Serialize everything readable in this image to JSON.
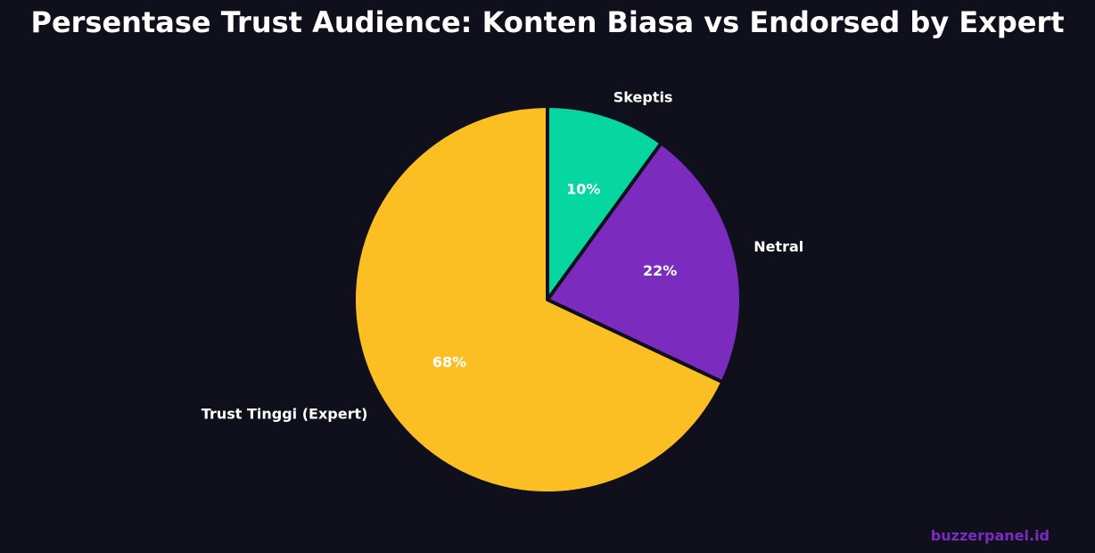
{
  "chart_data": {
    "type": "pie",
    "title": "Persentase Trust Audience: Konten Biasa vs Endorsed by Expert",
    "start_angle_deg": 90,
    "direction": "clockwise",
    "slices": [
      {
        "label": "Skeptis",
        "value": 10,
        "pct_label": "10%",
        "color": "#06d6a0"
      },
      {
        "label": "Netral",
        "value": 22,
        "pct_label": "22%",
        "color": "#7b2cbf"
      },
      {
        "label": "Trust Tinggi (Expert)",
        "value": 68,
        "pct_label": "68%",
        "color": "#fbbf24"
      }
    ]
  },
  "watermark": "buzzerpanel.id",
  "colors": {
    "background": "#10101c",
    "text": "#ffffff",
    "watermark": "#7b2cbf"
  }
}
